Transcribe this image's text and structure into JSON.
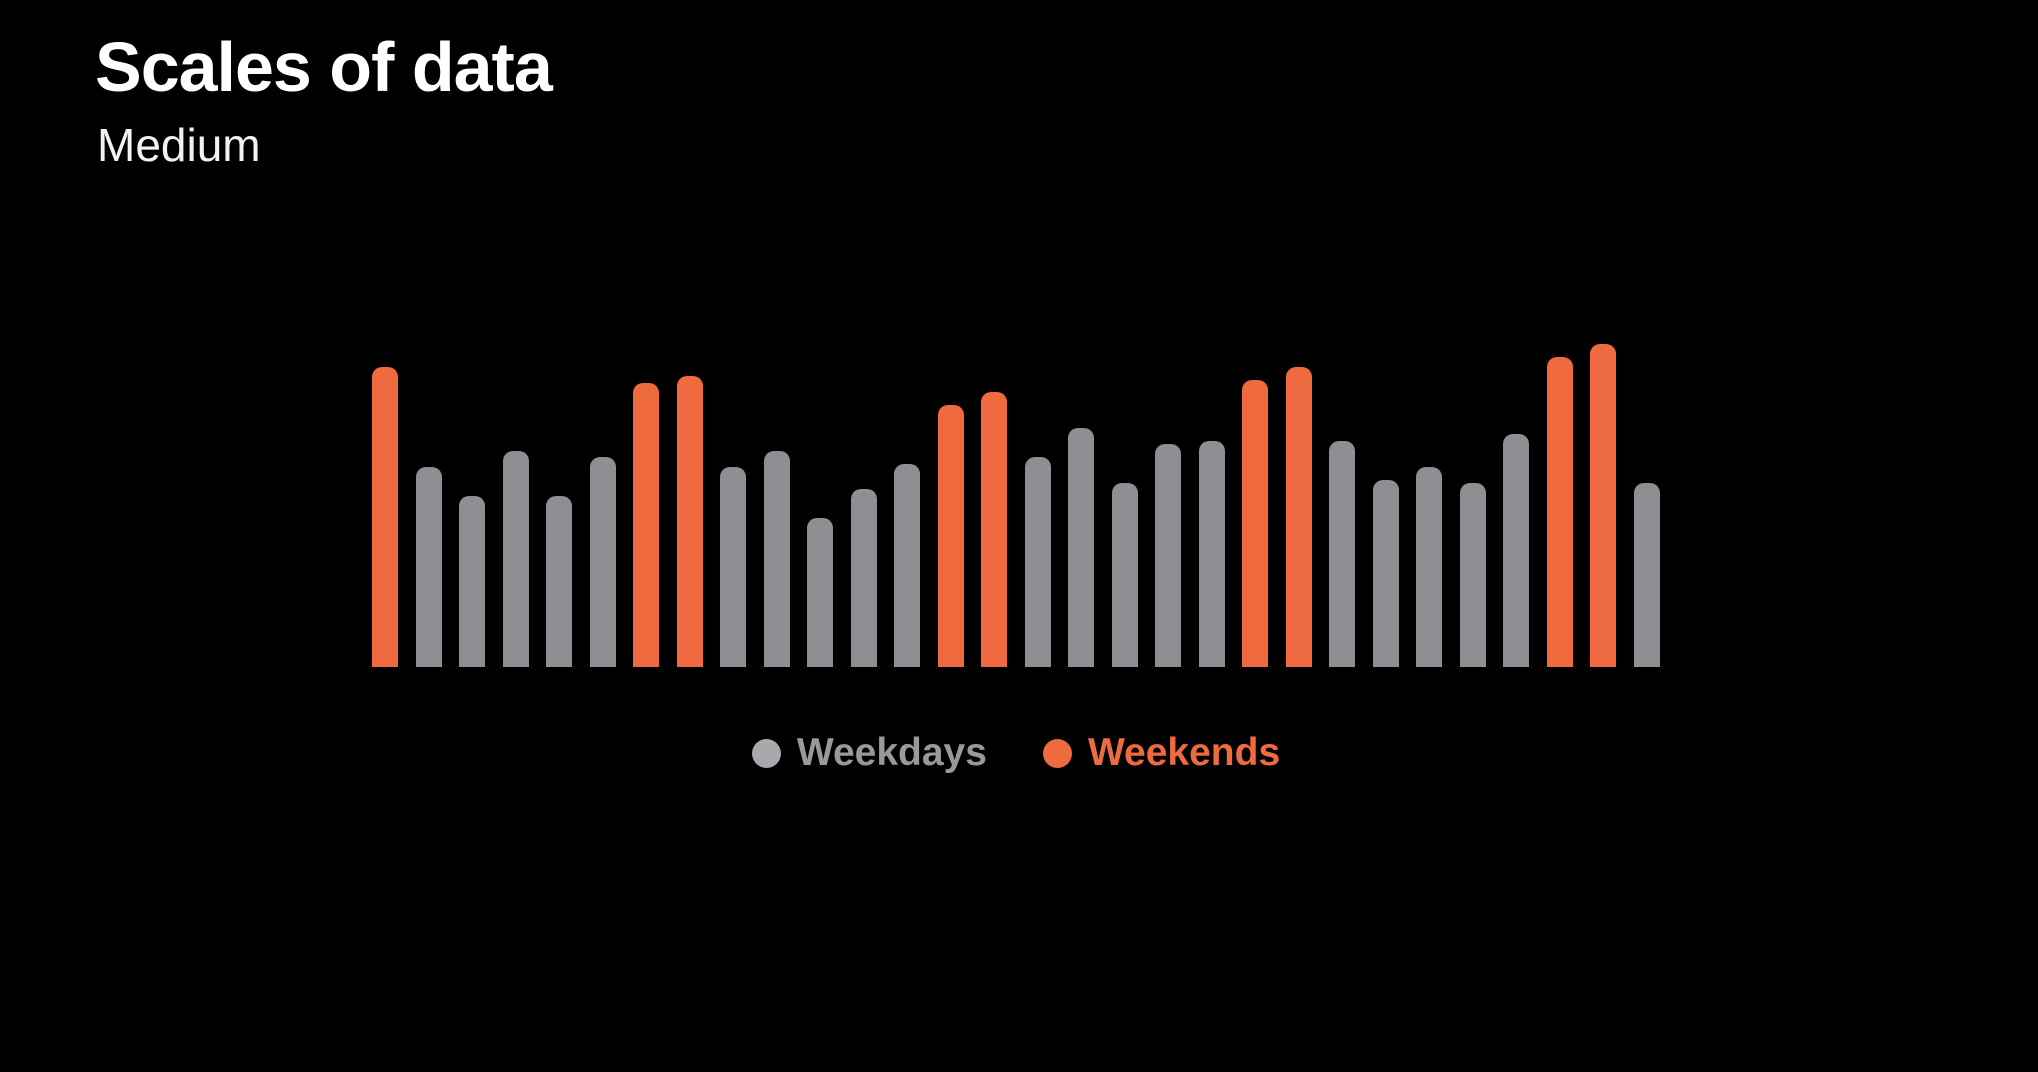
{
  "page": {
    "background_color": "#000000"
  },
  "header": {
    "title": "Scales of data",
    "subtitle": "Medium"
  },
  "legend": {
    "items": [
      {
        "label": "Weekdays",
        "dot_color": "#A8A8AD",
        "label_color": "#98989D"
      },
      {
        "label": "Weekends",
        "dot_color": "#EF6A3E",
        "label_color": "#EF6A3E"
      }
    ]
  },
  "chart_data": {
    "type": "bar",
    "title": "Scales of data",
    "subtitle": "Medium",
    "ylim": [
      0,
      100
    ],
    "grid": false,
    "axes_visible": false,
    "legend_position": "bottom",
    "series_colors": {
      "Weekdays": "#8E8E93",
      "Weekends": "#EF6A3E"
    },
    "bars": [
      {
        "value": 93,
        "series": "Weekends"
      },
      {
        "value": 62,
        "series": "Weekdays"
      },
      {
        "value": 53,
        "series": "Weekdays"
      },
      {
        "value": 67,
        "series": "Weekdays"
      },
      {
        "value": 53,
        "series": "Weekdays"
      },
      {
        "value": 65,
        "series": "Weekdays"
      },
      {
        "value": 88,
        "series": "Weekends"
      },
      {
        "value": 90,
        "series": "Weekends"
      },
      {
        "value": 62,
        "series": "Weekdays"
      },
      {
        "value": 67,
        "series": "Weekdays"
      },
      {
        "value": 46,
        "series": "Weekdays"
      },
      {
        "value": 55,
        "series": "Weekdays"
      },
      {
        "value": 63,
        "series": "Weekdays"
      },
      {
        "value": 81,
        "series": "Weekends"
      },
      {
        "value": 85,
        "series": "Weekends"
      },
      {
        "value": 65,
        "series": "Weekdays"
      },
      {
        "value": 74,
        "series": "Weekdays"
      },
      {
        "value": 57,
        "series": "Weekdays"
      },
      {
        "value": 69,
        "series": "Weekdays"
      },
      {
        "value": 70,
        "series": "Weekdays"
      },
      {
        "value": 89,
        "series": "Weekends"
      },
      {
        "value": 93,
        "series": "Weekends"
      },
      {
        "value": 70,
        "series": "Weekdays"
      },
      {
        "value": 58,
        "series": "Weekdays"
      },
      {
        "value": 62,
        "series": "Weekdays"
      },
      {
        "value": 57,
        "series": "Weekdays"
      },
      {
        "value": 72,
        "series": "Weekdays"
      },
      {
        "value": 96,
        "series": "Weekends"
      },
      {
        "value": 100,
        "series": "Weekends"
      },
      {
        "value": 57,
        "series": "Weekdays"
      }
    ]
  }
}
